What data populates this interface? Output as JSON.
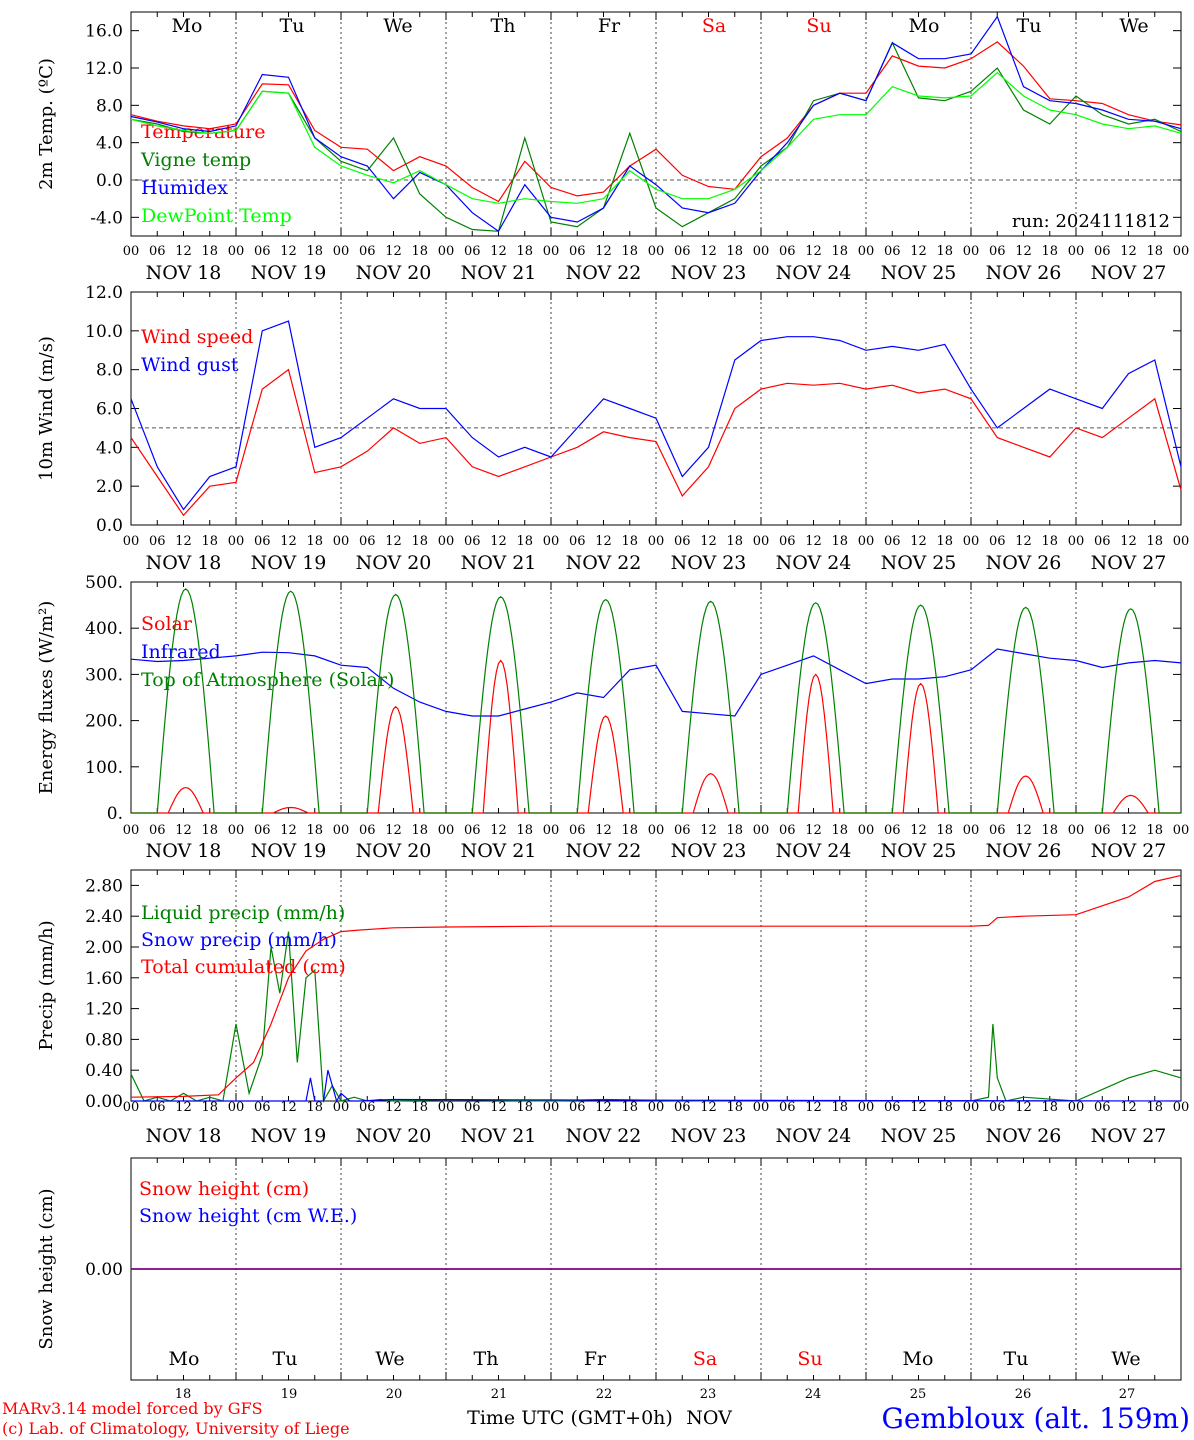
{
  "chart_data": [
    {
      "type": "line",
      "ylabel": "2m Temp. (ºC)",
      "ylim": [
        -6,
        18
      ],
      "yticks": [
        "-4.0",
        "0.0",
        "4.0",
        "8.0",
        "12.0",
        "16.0"
      ],
      "ytick_values": [
        -4,
        0,
        4,
        8,
        12,
        16
      ],
      "ref_line": 0,
      "annotation": "run: 2024111812",
      "series": [
        {
          "name": "Temperature",
          "color": "#ff0000",
          "x": [
            0,
            6,
            12,
            18,
            24,
            30,
            36,
            42,
            48,
            54,
            60,
            66,
            72,
            78,
            84,
            90,
            96,
            102,
            108,
            114,
            120,
            126,
            132,
            138,
            144,
            150,
            156,
            162,
            168,
            174,
            180,
            186,
            192,
            198,
            204,
            210,
            216,
            222,
            228,
            234,
            240
          ],
          "values": [
            7.0,
            6.3,
            5.8,
            5.5,
            6.0,
            10.3,
            10.2,
            5.3,
            3.5,
            3.3,
            1.0,
            2.5,
            1.5,
            -0.8,
            -2.3,
            2.0,
            -0.8,
            -1.7,
            -1.3,
            1.5,
            3.3,
            0.5,
            -0.7,
            -1.0,
            2.5,
            4.5,
            8.0,
            9.3,
            9.3,
            13.3,
            12.2,
            12.0,
            13.0,
            14.8,
            12.2,
            8.7,
            8.5,
            8.2,
            7.0,
            6.3,
            5.9
          ]
        },
        {
          "name": "Vigne temp",
          "color": "#008000",
          "x": [
            0,
            6,
            12,
            18,
            24,
            30,
            36,
            42,
            48,
            54,
            60,
            66,
            72,
            78,
            84,
            90,
            96,
            102,
            108,
            114,
            120,
            126,
            132,
            138,
            144,
            150,
            156,
            162,
            168,
            174,
            180,
            186,
            192,
            198,
            204,
            210,
            216,
            222,
            228,
            234,
            240
          ],
          "values": [
            6.5,
            6.0,
            5.2,
            5.0,
            5.3,
            9.5,
            9.3,
            4.5,
            2.0,
            1.0,
            4.5,
            -1.5,
            -4.0,
            -5.3,
            -5.5,
            4.5,
            -4.5,
            -5.0,
            -3.0,
            5.0,
            -3.0,
            -5.0,
            -3.5,
            -2.0,
            1.5,
            3.5,
            8.5,
            9.3,
            8.5,
            14.7,
            8.8,
            8.5,
            9.5,
            12.0,
            7.5,
            6.0,
            9.0,
            7.0,
            6.0,
            6.5,
            5.2
          ]
        },
        {
          "name": "Humidex",
          "color": "#0000ff",
          "x": [
            0,
            6,
            12,
            18,
            24,
            30,
            36,
            42,
            48,
            54,
            60,
            66,
            72,
            78,
            84,
            90,
            96,
            102,
            108,
            114,
            120,
            126,
            132,
            138,
            144,
            150,
            156,
            162,
            168,
            174,
            180,
            186,
            192,
            198,
            204,
            210,
            216,
            222,
            228,
            234,
            240
          ],
          "values": [
            6.8,
            6.2,
            5.5,
            5.2,
            5.8,
            11.3,
            11.0,
            4.5,
            2.5,
            1.5,
            -2.0,
            0.8,
            -0.5,
            -3.5,
            -5.5,
            -0.5,
            -4.0,
            -4.5,
            -3.0,
            1.5,
            -0.5,
            -3.0,
            -3.5,
            -2.5,
            1.0,
            4.0,
            8.0,
            9.3,
            8.5,
            14.7,
            13.0,
            13.0,
            13.5,
            17.5,
            10.0,
            8.5,
            8.2,
            7.5,
            6.5,
            6.3,
            5.5
          ]
        },
        {
          "name": "DewPoint Temp",
          "color": "#00ff00",
          "x": [
            0,
            6,
            12,
            18,
            24,
            30,
            36,
            42,
            48,
            54,
            60,
            66,
            72,
            78,
            84,
            90,
            96,
            102,
            108,
            114,
            120,
            126,
            132,
            138,
            144,
            150,
            156,
            162,
            168,
            174,
            180,
            186,
            192,
            198,
            204,
            210,
            216,
            222,
            228,
            234,
            240
          ],
          "values": [
            6.5,
            5.8,
            5.3,
            5.0,
            5.3,
            9.5,
            9.3,
            3.5,
            1.5,
            0.5,
            -0.3,
            1.0,
            -0.5,
            -2.0,
            -2.5,
            -2.0,
            -2.3,
            -2.5,
            -2.0,
            1.0,
            -1.0,
            -2.0,
            -2.0,
            -1.0,
            1.0,
            3.5,
            6.5,
            7.0,
            7.0,
            10.0,
            9.0,
            8.8,
            9.0,
            11.5,
            9.0,
            7.5,
            7.0,
            6.0,
            5.5,
            5.8,
            5.0
          ]
        }
      ]
    },
    {
      "type": "line",
      "ylabel": "10m Wind (m/s)",
      "ylim": [
        0,
        12
      ],
      "yticks": [
        "0.0",
        "2.0",
        "4.0",
        "6.0",
        "8.0",
        "10.0",
        "12.0"
      ],
      "ytick_values": [
        0,
        2,
        4,
        6,
        8,
        10,
        12
      ],
      "ref_line": 5,
      "series": [
        {
          "name": "Wind speed",
          "color": "#ff0000",
          "x": [
            0,
            6,
            12,
            18,
            24,
            30,
            36,
            42,
            48,
            54,
            60,
            66,
            72,
            78,
            84,
            90,
            96,
            102,
            108,
            114,
            120,
            126,
            132,
            138,
            144,
            150,
            156,
            162,
            168,
            174,
            180,
            186,
            192,
            198,
            204,
            210,
            216,
            222,
            228,
            234,
            240
          ],
          "values": [
            4.5,
            2.5,
            0.5,
            2.0,
            2.2,
            7.0,
            8.0,
            2.7,
            3.0,
            3.8,
            5.0,
            4.2,
            4.5,
            3.0,
            2.5,
            3.0,
            3.5,
            4.0,
            4.8,
            4.5,
            4.3,
            1.5,
            3.0,
            6.0,
            7.0,
            7.3,
            7.2,
            7.3,
            7.0,
            7.2,
            6.8,
            7.0,
            6.5,
            4.5,
            4.0,
            3.5,
            5.0,
            4.5,
            5.5,
            6.5,
            1.8
          ]
        },
        {
          "name": "Wind gust",
          "color": "#0000ff",
          "x": [
            0,
            6,
            12,
            18,
            24,
            30,
            36,
            42,
            48,
            54,
            60,
            66,
            72,
            78,
            84,
            90,
            96,
            102,
            108,
            114,
            120,
            126,
            132,
            138,
            144,
            150,
            156,
            162,
            168,
            174,
            180,
            186,
            192,
            198,
            204,
            210,
            216,
            222,
            228,
            234,
            240
          ],
          "values": [
            6.5,
            3.0,
            0.8,
            2.5,
            3.0,
            10.0,
            10.5,
            4.0,
            4.5,
            5.5,
            6.5,
            6.0,
            6.0,
            4.5,
            3.5,
            4.0,
            3.5,
            5.0,
            6.5,
            6.0,
            5.5,
            2.5,
            4.0,
            8.5,
            9.5,
            9.7,
            9.7,
            9.5,
            9.0,
            9.2,
            9.0,
            9.3,
            7.0,
            5.0,
            6.0,
            7.0,
            6.5,
            6.0,
            7.8,
            8.5,
            3.0
          ]
        }
      ]
    },
    {
      "type": "line",
      "ylabel": "Energy fluxes (W/m²)",
      "ylim": [
        0,
        500
      ],
      "yticks": [
        "0.",
        "100.",
        "200.",
        "300.",
        "400.",
        "500."
      ],
      "ytick_values": [
        0,
        100,
        200,
        300,
        400,
        500
      ],
      "series": [
        {
          "name": "Solar",
          "color": "#ff0000",
          "peaks": [
            55,
            12,
            230,
            330,
            210,
            85,
            300,
            280,
            80,
            38
          ]
        },
        {
          "name": "Infrared",
          "color": "#0000ff",
          "x": [
            0,
            6,
            12,
            18,
            24,
            30,
            36,
            42,
            48,
            54,
            60,
            66,
            72,
            78,
            84,
            90,
            96,
            102,
            108,
            114,
            120,
            126,
            132,
            138,
            144,
            150,
            156,
            162,
            168,
            174,
            180,
            186,
            192,
            198,
            204,
            210,
            216,
            222,
            228,
            234,
            240
          ],
          "values": [
            333,
            328,
            330,
            335,
            340,
            348,
            347,
            340,
            320,
            315,
            270,
            240,
            220,
            210,
            210,
            225,
            240,
            260,
            250,
            310,
            320,
            220,
            215,
            210,
            300,
            320,
            340,
            310,
            280,
            290,
            290,
            295,
            310,
            355,
            345,
            335,
            330,
            315,
            325,
            330,
            325
          ]
        },
        {
          "name": "Top of Atmosphere (Solar)",
          "color": "#008000",
          "peaks": [
            485,
            480,
            473,
            468,
            462,
            458,
            455,
            450,
            445,
            442
          ]
        }
      ]
    },
    {
      "type": "line",
      "ylabel": "Precip (mm/h)",
      "ylim": [
        0,
        3.0
      ],
      "yticks": [
        "0.00",
        "0.40",
        "0.80",
        "1.20",
        "1.60",
        "2.00",
        "2.40",
        "2.80"
      ],
      "ytick_values": [
        0,
        0.4,
        0.8,
        1.2,
        1.6,
        2.0,
        2.4,
        2.8
      ],
      "series": [
        {
          "name": "Liquid precip (mm/h)",
          "color": "#008000",
          "x": [
            0,
            3,
            6,
            9,
            12,
            15,
            18,
            21,
            24,
            27,
            30,
            32,
            34,
            36,
            38,
            40,
            42,
            44,
            46,
            48,
            51,
            54,
            57,
            60,
            72,
            84,
            96,
            108,
            120,
            132,
            144,
            156,
            168,
            180,
            192,
            196,
            197,
            198,
            200,
            204,
            216,
            228,
            234,
            240
          ],
          "values": [
            0.35,
            0.0,
            0.05,
            0.0,
            0.1,
            0.0,
            0.05,
            0.0,
            1.0,
            0.1,
            0.6,
            2.0,
            1.4,
            2.2,
            0.5,
            1.6,
            1.7,
            0.0,
            0.2,
            0.0,
            0.05,
            0.0,
            0.02,
            0.0,
            0.02,
            0.01,
            0.0,
            0.02,
            0.01,
            0.0,
            0.0,
            0.0,
            0.0,
            0.0,
            0.0,
            0.05,
            1.0,
            0.3,
            0.0,
            0.05,
            0.0,
            0.3,
            0.4,
            0.3
          ]
        },
        {
          "name": "Snow precip (mm/h)",
          "color": "#0000ff",
          "x": [
            0,
            36,
            40,
            41,
            42,
            43,
            44,
            45,
            46,
            47,
            48,
            50,
            52,
            60,
            120,
            240
          ],
          "values": [
            0.0,
            0.0,
            0.0,
            0.3,
            0.0,
            0.0,
            0.0,
            0.4,
            0.2,
            0.0,
            0.1,
            0.0,
            0.0,
            0.02,
            0.01,
            0.0
          ]
        },
        {
          "name": "Total cumulated (cm)",
          "color": "#ff0000",
          "x": [
            0,
            12,
            20,
            24,
            28,
            32,
            36,
            40,
            44,
            48,
            52,
            60,
            72,
            96,
            120,
            144,
            168,
            192,
            196,
            198,
            204,
            216,
            228,
            234,
            240
          ],
          "values": [
            0.05,
            0.06,
            0.08,
            0.3,
            0.5,
            1.0,
            1.6,
            1.95,
            2.1,
            2.2,
            2.22,
            2.25,
            2.26,
            2.27,
            2.27,
            2.27,
            2.27,
            2.27,
            2.28,
            2.38,
            2.4,
            2.42,
            2.65,
            2.85,
            2.93
          ]
        }
      ]
    },
    {
      "type": "line",
      "ylabel": "Snow height (cm)",
      "yticks": [
        "0.00"
      ],
      "ytick_values": [
        0
      ],
      "series": [
        {
          "name": "Snow height (cm)",
          "color": "#ff0000",
          "x": [
            0,
            240
          ],
          "values": [
            0,
            0
          ]
        },
        {
          "name": "Snow height (cm W.E.)",
          "color": "#0000ff",
          "x": [
            0,
            240
          ],
          "values": [
            0,
            0
          ]
        }
      ]
    }
  ],
  "axis": {
    "hour_labels": [
      "00",
      "06",
      "12",
      "18"
    ],
    "final_hour": "00",
    "dates": [
      "NOV 18",
      "NOV 19",
      "NOV 20",
      "NOV 21",
      "NOV 22",
      "NOV 23",
      "NOV 24",
      "NOV 25",
      "NOV 26",
      "NOV 27"
    ],
    "weekdays": [
      {
        "label": "Mo",
        "color": "#000000"
      },
      {
        "label": "Tu",
        "color": "#000000"
      },
      {
        "label": "We",
        "color": "#000000"
      },
      {
        "label": "Th",
        "color": "#000000"
      },
      {
        "label": "Fr",
        "color": "#000000"
      },
      {
        "label": "Sa",
        "color": "#ff0000"
      },
      {
        "label": "Su",
        "color": "#ff0000"
      },
      {
        "label": "Mo",
        "color": "#000000"
      },
      {
        "label": "Tu",
        "color": "#000000"
      },
      {
        "label": "We",
        "color": "#000000"
      }
    ],
    "day_numbers": [
      "18",
      "19",
      "20",
      "21",
      "22",
      "23",
      "24",
      "25",
      "26",
      "27"
    ],
    "time_title": "Time UTC (GMT+0h)",
    "month": "NOV"
  },
  "footer": {
    "credit_line1": "MARv3.14 model forced by GFS",
    "credit_line2": "(c) Lab. of Climatology, University of Liege",
    "location": "Gembloux (alt. 159m)"
  },
  "colors": {
    "red": "#ff0000",
    "green": "#008000",
    "blue": "#0000ff",
    "lime": "#00ff00",
    "purple": "#800080"
  }
}
